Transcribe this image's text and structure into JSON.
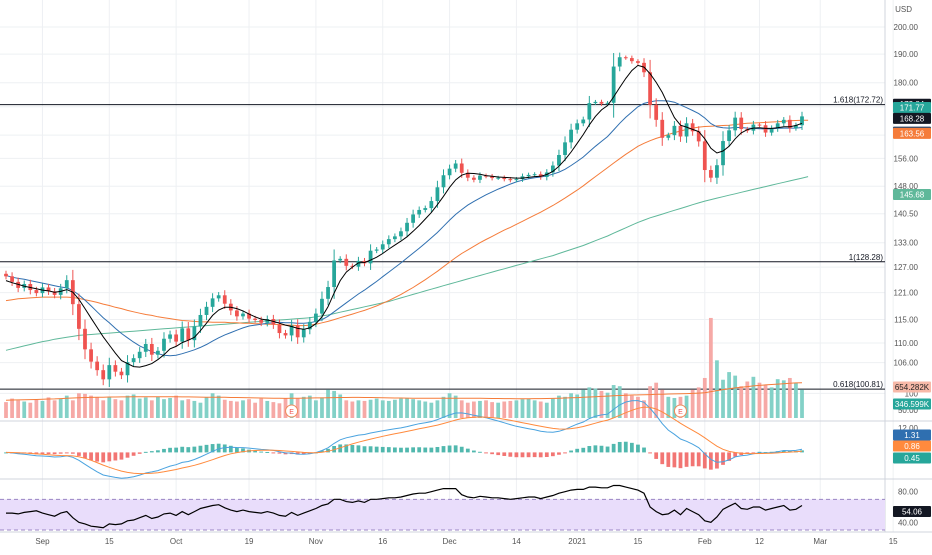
{
  "currency": "USD",
  "colors": {
    "up": "#26a69a",
    "down": "#ef5350",
    "sma_fast": "#000000",
    "sma_mid": "#2f6fb0",
    "sma_slow": "#f57c3a",
    "sma_long": "#5fb89a",
    "macd": "#4aa3df",
    "signal": "#ff8a3d",
    "rsi": "#000000",
    "rsi_band": "#e9ddfb",
    "grid": "#eef0f3",
    "axis_text": "#555555"
  },
  "chart_data": [
    {
      "type": "candlestick",
      "title": "",
      "ylim": [
        96,
        205
      ],
      "y_ticks": [
        100,
        106,
        110,
        115,
        121,
        127,
        133,
        140.5,
        148,
        156,
        163,
        172,
        180,
        190,
        200
      ],
      "y_tick_labels": [
        "100",
        "106.00",
        "110.00",
        "115.00",
        "121.00",
        "127.00",
        "133.00",
        "140.50",
        "148.00",
        "156.00",
        "163.00",
        "172.00",
        "180.00",
        "190.00",
        "200.00"
      ],
      "x_tick_labels": [
        "Sep",
        "15",
        "Oct",
        "19",
        "Nov",
        "16",
        "Dec",
        "14",
        "2021",
        "15",
        "Feb",
        "12",
        "Mar",
        "15"
      ],
      "x_tick_index": [
        6,
        17,
        28,
        40,
        51,
        62,
        73,
        84,
        94,
        104,
        115,
        124,
        134,
        146
      ],
      "close": [
        124.8,
        123.5,
        122.1,
        123.0,
        121.6,
        120.9,
        122.2,
        121.3,
        120.5,
        122.0,
        123.9,
        118.4,
        113.0,
        108.7,
        106.2,
        104.5,
        102.7,
        105.5,
        104.2,
        103.5,
        106.1,
        106.9,
        108.2,
        109.8,
        107.6,
        108.4,
        110.9,
        111.8,
        110.3,
        113.1,
        110.6,
        113.5,
        116.0,
        117.8,
        119.7,
        120.4,
        118.5,
        117.0,
        115.7,
        116.3,
        115.2,
        114.9,
        114.3,
        115.1,
        113.9,
        112.1,
        111.6,
        113.7,
        111.2,
        112.9,
        114.5,
        116.3,
        119.6,
        122.3,
        128.6,
        129.0,
        127.3,
        127.1,
        128.5,
        127.9,
        131.0,
        131.3,
        132.6,
        133.9,
        134.6,
        135.9,
        138.1,
        140.3,
        141.5,
        142.0,
        143.9,
        147.7,
        151.1,
        153.0,
        154.5,
        151.8,
        150.4,
        149.8,
        151.0,
        150.8,
        150.3,
        150.4,
        150.0,
        149.7,
        150.0,
        150.8,
        151.2,
        151.4,
        150.6,
        151.9,
        153.9,
        157.0,
        160.8,
        164.7,
        166.7,
        167.9,
        173.2,
        173.6,
        173.0,
        173.3,
        185.6,
        188.9,
        188.6,
        187.5,
        186.9,
        183.6,
        172.6,
        167.8,
        162.2,
        163.0,
        165.9,
        162.6,
        166.7,
        164.2,
        161.1,
        152.6,
        150.4,
        154.0,
        161.2,
        164.5,
        168.5,
        164.9,
        164.4,
        166.3,
        166.1,
        163.8,
        165.1,
        166.7,
        167.8,
        165.2,
        166.1,
        168.9
      ],
      "yesterday_trace_note": "",
      "sma_fast": [
        123.8,
        123.3,
        122.9,
        122.5,
        122.2,
        121.9,
        121.6,
        121.4,
        121.1,
        121.3,
        121.7,
        121.1,
        119.5,
        117.4,
        115.3,
        113.3,
        111.3,
        109.6,
        107.9,
        106.4,
        105.8,
        105.2,
        105.1,
        105.4,
        105.8,
        106.6,
        107.6,
        108.8,
        109.3,
        110.1,
        110.6,
        111.2,
        112.6,
        114.2,
        115.9,
        117.1,
        117.7,
        117.7,
        117.4,
        116.9,
        116.2,
        115.6,
        115.1,
        114.9,
        114.6,
        114.2,
        113.8,
        113.5,
        113.1,
        112.9,
        113.2,
        114.1,
        115.6,
        117.8,
        120.9,
        123.8,
        125.8,
        127.0,
        128.0,
        128.1,
        128.7,
        129.4,
        130.3,
        131.4,
        132.4,
        133.4,
        134.5,
        135.9,
        137.4,
        139.1,
        140.8,
        142.9,
        145.2,
        147.7,
        149.8,
        151.1,
        151.7,
        151.6,
        151.4,
        151.0,
        150.8,
        150.6,
        150.5,
        150.4,
        150.3,
        150.3,
        150.5,
        150.7,
        150.8,
        151.3,
        152.2,
        153.7,
        155.6,
        157.9,
        160.5,
        163.2,
        166.2,
        168.9,
        171.0,
        172.4,
        175.2,
        178.4,
        181.5,
        184.2,
        186.0,
        185.4,
        183.1,
        180.1,
        176.7,
        172.5,
        168.5,
        166.1,
        165.5,
        164.8,
        164.1,
        161.9,
        159.0,
        157.6,
        158.2,
        159.6,
        161.9,
        163.7,
        164.7,
        165.2,
        165.3,
        165.1,
        165.1,
        165.3,
        165.6,
        165.6,
        166.0,
        166.7
      ],
      "sma_mid": [
        125.0,
        124.6,
        124.3,
        124.1,
        123.8,
        123.5,
        123.2,
        122.9,
        122.6,
        122.3,
        122.1,
        121.5,
        120.5,
        119.3,
        118.0,
        116.7,
        115.4,
        114.3,
        113.1,
        112.0,
        111.1,
        110.2,
        109.4,
        108.8,
        108.2,
        107.8,
        107.5,
        107.4,
        107.5,
        107.8,
        108.2,
        108.6,
        109.1,
        109.7,
        110.4,
        111.1,
        111.7,
        112.2,
        112.7,
        113.2,
        113.6,
        113.8,
        114.0,
        114.2,
        114.3,
        114.4,
        114.3,
        114.3,
        114.2,
        114.2,
        114.3,
        114.6,
        115.0,
        115.7,
        116.7,
        117.7,
        118.7,
        119.7,
        120.7,
        121.6,
        122.6,
        123.6,
        124.7,
        125.8,
        126.9,
        128.0,
        129.2,
        130.4,
        131.6,
        132.9,
        134.2,
        135.6,
        137.2,
        138.8,
        140.3,
        141.6,
        142.8,
        143.8,
        144.7,
        145.6,
        146.4,
        147.2,
        147.9,
        148.6,
        149.2,
        149.7,
        150.1,
        150.4,
        150.6,
        150.9,
        151.4,
        152.0,
        152.8,
        153.9,
        155.1,
        156.4,
        158.0,
        159.6,
        161.1,
        162.6,
        164.6,
        166.7,
        168.6,
        170.3,
        172.0,
        173.1,
        173.6,
        174.0,
        174.0,
        173.9,
        173.5,
        172.6,
        171.7,
        170.8,
        169.8,
        168.4,
        166.6,
        165.6,
        165.3,
        165.2,
        165.4,
        165.4,
        165.2,
        165.1,
        165.0,
        164.9,
        165.0,
        165.1,
        165.2,
        165.2,
        165.2,
        165.4
      ],
      "sma_slow": [
        119.2,
        119.4,
        119.6,
        119.7,
        119.8,
        119.9,
        120.0,
        120.0,
        120.0,
        120.0,
        120.0,
        119.9,
        119.7,
        119.4,
        119.1,
        118.8,
        118.4,
        118.1,
        117.7,
        117.4,
        117.0,
        116.7,
        116.4,
        116.1,
        115.9,
        115.6,
        115.4,
        115.2,
        115.0,
        114.8,
        114.7,
        114.6,
        114.5,
        114.5,
        114.4,
        114.4,
        114.4,
        114.3,
        114.3,
        114.2,
        114.2,
        114.1,
        114.1,
        114.0,
        114.0,
        113.9,
        113.8,
        113.8,
        113.7,
        113.7,
        113.8,
        114.0,
        114.3,
        114.6,
        115.0,
        115.4,
        115.8,
        116.2,
        116.6,
        117.0,
        117.5,
        118.0,
        118.6,
        119.2,
        119.9,
        120.6,
        121.4,
        122.2,
        123.1,
        124.0,
        125.0,
        126.0,
        127.1,
        128.2,
        129.3,
        130.3,
        131.2,
        132.1,
        133.0,
        133.8,
        134.6,
        135.4,
        136.2,
        136.9,
        137.7,
        138.5,
        139.3,
        140.1,
        140.9,
        141.8,
        142.7,
        143.7,
        144.7,
        145.8,
        146.9,
        148.1,
        149.4,
        150.7,
        152.0,
        153.3,
        154.6,
        155.9,
        157.2,
        158.4,
        159.6,
        160.5,
        161.3,
        162.0,
        162.6,
        163.2,
        163.8,
        164.3,
        164.8,
        165.2,
        165.5,
        165.7,
        165.8,
        165.9,
        166.0,
        166.1,
        166.3,
        166.5,
        166.7,
        166.8,
        166.9,
        167.0,
        167.1,
        167.2,
        167.3,
        167.5,
        167.6,
        167.7,
        167.7
      ],
      "sma_long": [
        108.5,
        108.8,
        109.1,
        109.4,
        109.7,
        110.0,
        110.3,
        110.5,
        110.8,
        111.0,
        111.2,
        111.4,
        111.6,
        111.7,
        111.8,
        111.9,
        112.0,
        112.1,
        112.2,
        112.3,
        112.4,
        112.5,
        112.6,
        112.7,
        112.8,
        112.9,
        113.0,
        113.1,
        113.2,
        113.3,
        113.4,
        113.5,
        113.6,
        113.7,
        113.8,
        113.9,
        114.0,
        114.1,
        114.2,
        114.3,
        114.4,
        114.5,
        114.6,
        114.7,
        114.8,
        114.9,
        115.0,
        115.1,
        115.2,
        115.3,
        115.4,
        115.6,
        115.8,
        116.0,
        116.3,
        116.6,
        116.9,
        117.2,
        117.5,
        117.8,
        118.1,
        118.4,
        118.7,
        119.0,
        119.4,
        119.8,
        120.2,
        120.6,
        121.0,
        121.4,
        121.8,
        122.2,
        122.6,
        123.0,
        123.4,
        123.8,
        124.2,
        124.6,
        125.0,
        125.4,
        125.8,
        126.2,
        126.6,
        127.0,
        127.4,
        127.8,
        128.2,
        128.6,
        129.0,
        129.4,
        129.8,
        130.3,
        130.8,
        131.3,
        131.8,
        132.3,
        132.9,
        133.5,
        134.1,
        134.7,
        135.4,
        136.1,
        136.8,
        137.5,
        138.2,
        138.8,
        139.4,
        139.9,
        140.4,
        140.9,
        141.4,
        141.9,
        142.4,
        142.9,
        143.4,
        143.9,
        144.3,
        144.7,
        145.1,
        145.5,
        145.9,
        146.3,
        146.7,
        147.1,
        147.5,
        147.9,
        148.3,
        148.7,
        149.1,
        149.5,
        149.9,
        150.3,
        150.7
      ],
      "annotations": [
        {
          "label": "1.618(172.72)",
          "value": 172.72
        },
        {
          "label": "1(128.28)",
          "value": 128.28
        },
        {
          "label": "0.618(100.81)",
          "value": 100.81
        }
      ],
      "price_tags": [
        {
          "text": "172.84",
          "value": 172.84,
          "color": "#131722",
          "text_color": "#ffffff"
        },
        {
          "text": "171.77",
          "value": 171.77,
          "color": "#26a69a",
          "text_color": "#ffffff"
        },
        {
          "text": "168.28",
          "value": 168.28,
          "color": "#131722",
          "text_color": "#ffffff"
        },
        {
          "text": "163.96",
          "value": 163.96,
          "color": "#2f4a6b",
          "text_color": "#ffffff"
        },
        {
          "text": "163.56",
          "value": 163.56,
          "color": "#f57c3a",
          "text_color": "#ffffff"
        },
        {
          "text": "145.68",
          "value": 145.68,
          "color": "#5fb89a",
          "text_color": "#ffffff"
        }
      ]
    },
    {
      "type": "bar",
      "title": "Volume",
      "tags": [
        {
          "text": "654.282K",
          "color": "#f7b9a8",
          "text_color": "#222222"
        },
        {
          "text": "346.599K",
          "color": "#26a69a",
          "text_color": "#ffffff"
        }
      ],
      "y_tick_label": "50.00",
      "earnings_markers": [
        {
          "label": "E",
          "index": 47
        },
        {
          "label": "E",
          "index": 111
        }
      ],
      "values": [
        270,
        330,
        300,
        280,
        260,
        310,
        290,
        350,
        300,
        330,
        380,
        300,
        420,
        410,
        380,
        350,
        300,
        360,
        320,
        300,
        380,
        400,
        330,
        350,
        300,
        360,
        320,
        340,
        380,
        300,
        320,
        290,
        260,
        350,
        420,
        380,
        310,
        290,
        280,
        300,
        320,
        260,
        330,
        290,
        270,
        250,
        340,
        420,
        330,
        360,
        380,
        300,
        350,
        480,
        460,
        400,
        300,
        280,
        300,
        290,
        310,
        330,
        300,
        290,
        310,
        330,
        340,
        320,
        300,
        280,
        260,
        300,
        360,
        420,
        380,
        300,
        260,
        280,
        290,
        300,
        270,
        260,
        280,
        290,
        300,
        320,
        330,
        300,
        280,
        260,
        330,
        380,
        360,
        420,
        400,
        480,
        520,
        500,
        460,
        430,
        560,
        540,
        420,
        380,
        360,
        300,
        540,
        600,
        480,
        360,
        340,
        360,
        380,
        480,
        520,
        680,
        1700,
        980,
        650,
        780,
        720,
        540,
        620,
        700,
        600,
        560,
        520,
        660,
        640,
        680,
        600,
        480
      ],
      "vol_ma": [
        300,
        305,
        308,
        310,
        312,
        315,
        318,
        322,
        325,
        330,
        335,
        340,
        345,
        348,
        350,
        352,
        354,
        356,
        357,
        358,
        359,
        360,
        360,
        361,
        361,
        361,
        360,
        360,
        360,
        359,
        358,
        356,
        355,
        354,
        353,
        352,
        351,
        349,
        348,
        346,
        344,
        342,
        340,
        338,
        336,
        334,
        333,
        334,
        336,
        338,
        340,
        341,
        342,
        344,
        346,
        348,
        349,
        350,
        350,
        349,
        348,
        346,
        344,
        342,
        340,
        339,
        338,
        337,
        336,
        335,
        334,
        334,
        334,
        335,
        336,
        336,
        336,
        335,
        334,
        333,
        332,
        331,
        330,
        329,
        328,
        328,
        328,
        329,
        330,
        331,
        333,
        336,
        339,
        343,
        347,
        352,
        357,
        362,
        367,
        372,
        377,
        382,
        386,
        390,
        393,
        395,
        398,
        402,
        405,
        407,
        409,
        411,
        414,
        418,
        423,
        430,
        448,
        466,
        482,
        498,
        512,
        523,
        534,
        545,
        554,
        562,
        569,
        576,
        583,
        590,
        596,
        600
      ],
      "ylim": [
        0,
        1750
      ]
    },
    {
      "type": "histogram-line",
      "title": "MACD",
      "tags": [
        {
          "text": "1.31",
          "color": "#2f6fb0",
          "text_color": "#ffffff"
        },
        {
          "text": "0.86",
          "color": "#ff8a3d",
          "text_color": "#ffffff"
        },
        {
          "text": "0.45",
          "color": "#26a69a",
          "text_color": "#ffffff"
        }
      ],
      "ylim": [
        -4.5,
        5.5
      ],
      "y_tick_label": "12.00"
    },
    {
      "type": "line",
      "title": "RSI",
      "ylim": [
        30,
        90
      ],
      "band": [
        30,
        70
      ],
      "y_ticks": [
        40,
        80
      ],
      "y_tick_labels": [
        "40.00",
        "80.00"
      ],
      "last_tag": {
        "text": "54.06",
        "color": "#131722",
        "text_color": "#ffffff"
      },
      "values": [
        52,
        52,
        51,
        53,
        54,
        55,
        52,
        50,
        48,
        52,
        54,
        46,
        40,
        38,
        35,
        34,
        33,
        38,
        37,
        38,
        42,
        43,
        46,
        49,
        45,
        47,
        51,
        52,
        49,
        54,
        50,
        54,
        58,
        60,
        62,
        63,
        59,
        56,
        54,
        56,
        54,
        53,
        52,
        54,
        52,
        49,
        48,
        53,
        49,
        52,
        55,
        58,
        62,
        64,
        70,
        70,
        67,
        66,
        68,
        66,
        70,
        70,
        71,
        72,
        72,
        73,
        75,
        77,
        78,
        78,
        80,
        82,
        84,
        84,
        84,
        76,
        73,
        72,
        74,
        73,
        72,
        72,
        71,
        70,
        71,
        72,
        73,
        73,
        71,
        73,
        75,
        78,
        80,
        82,
        83,
        83,
        86,
        86,
        85,
        85,
        88,
        88,
        86,
        84,
        82,
        78,
        60,
        54,
        50,
        51,
        56,
        50,
        58,
        54,
        50,
        42,
        40,
        47,
        57,
        61,
        65,
        58,
        57,
        60,
        60,
        56,
        58,
        60,
        62,
        56,
        57,
        62
      ]
    }
  ],
  "x_axis": {
    "labels": [
      "Sep",
      "15",
      "Oct",
      "19",
      "Nov",
      "16",
      "Dec",
      "14",
      "2021",
      "15",
      "Feb",
      "12",
      "Mar",
      "15"
    ]
  }
}
